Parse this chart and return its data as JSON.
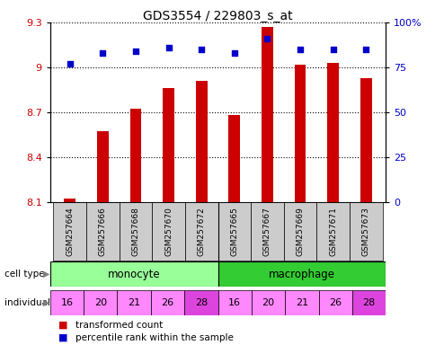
{
  "title": "GDS3554 / 229803_s_at",
  "samples": [
    "GSM257664",
    "GSM257666",
    "GSM257668",
    "GSM257670",
    "GSM257672",
    "GSM257665",
    "GSM257667",
    "GSM257669",
    "GSM257671",
    "GSM257673"
  ],
  "bar_values": [
    8.12,
    8.57,
    8.72,
    8.86,
    8.91,
    8.68,
    9.27,
    9.02,
    9.03,
    8.93
  ],
  "percentile_values": [
    77,
    83,
    84,
    86,
    85,
    83,
    91,
    85,
    85,
    85
  ],
  "bar_color": "#cc0000",
  "dot_color": "#0000cc",
  "ylim_left": [
    8.1,
    9.3
  ],
  "ylim_right": [
    0,
    100
  ],
  "yticks_left": [
    8.1,
    8.4,
    8.7,
    9.0,
    9.3
  ],
  "ytick_labels_left": [
    "8.1",
    "8.4",
    "8.7",
    "9",
    "9.3"
  ],
  "yticks_right": [
    0,
    25,
    50,
    75,
    100
  ],
  "ytick_labels_right": [
    "0",
    "25",
    "50",
    "75",
    "100%"
  ],
  "cell_types": [
    "monocyte",
    "macrophage"
  ],
  "cell_type_spans": [
    5,
    5
  ],
  "cell_type_color_mono": "#99ff99",
  "cell_type_color_macro": "#33cc33",
  "individuals": [
    16,
    20,
    21,
    26,
    28,
    16,
    20,
    21,
    26,
    28
  ],
  "individual_color": "#ff88ff",
  "individual_28_color": "#dd44dd",
  "legend_bar_label": "transformed count",
  "legend_dot_label": "percentile rank within the sample",
  "label_cell_type": "cell type",
  "label_individual": "individual",
  "tick_label_color_left": "#cc0000",
  "tick_label_color_right": "#0000cc",
  "sample_bg_color": "#cccccc"
}
